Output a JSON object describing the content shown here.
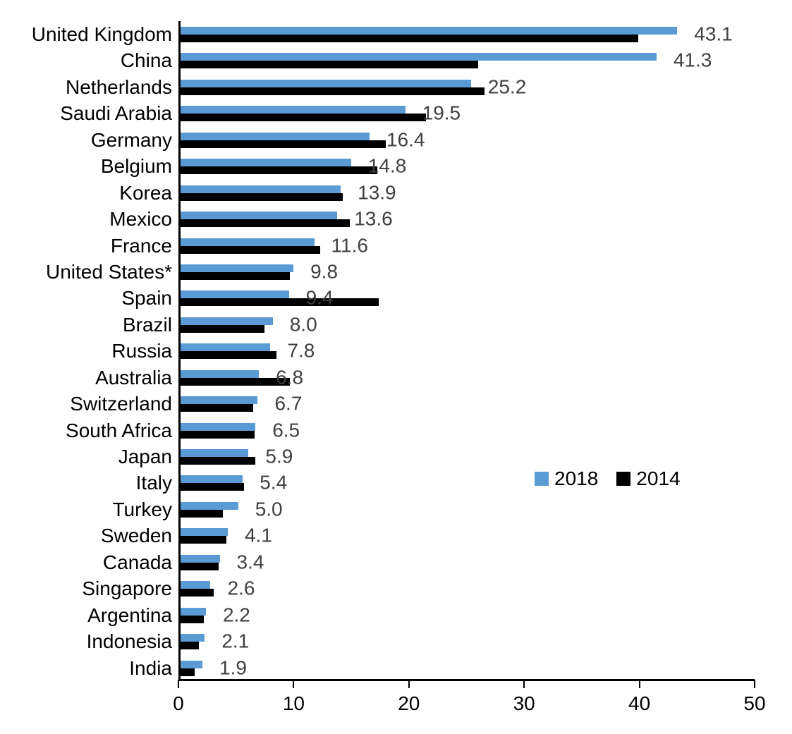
{
  "chart_data": {
    "type": "bar",
    "orientation": "horizontal",
    "title": "",
    "xlabel": "",
    "ylabel": "",
    "xlim": [
      0,
      50
    ],
    "xticks": [
      "0",
      "10",
      "20",
      "30",
      "40",
      "50"
    ],
    "grid": false,
    "legend_position": "middle-right",
    "categories": [
      "United Kingdom",
      "China",
      "Netherlands",
      "Saudi Arabia",
      "Germany",
      "Belgium",
      "Korea",
      "Mexico",
      "France",
      "United States*",
      "Spain",
      "Brazil",
      "Russia",
      "Australia",
      "Switzerland",
      "South Africa",
      "Japan",
      "Italy",
      "Turkey",
      "Sweden",
      "Canada",
      "Singapore",
      "Argentina",
      "Indonesia",
      "India"
    ],
    "series": [
      {
        "name": "2018",
        "color": "#5B9BD5",
        "values": [
          43.1,
          41.3,
          25.2,
          19.5,
          16.4,
          14.8,
          13.9,
          13.6,
          11.6,
          9.8,
          9.4,
          8.0,
          7.8,
          6.8,
          6.7,
          6.5,
          5.9,
          5.4,
          5.0,
          4.1,
          3.4,
          2.6,
          2.2,
          2.1,
          1.9
        ]
      },
      {
        "name": "2014",
        "color": "#000000",
        "values": [
          39.7,
          25.8,
          26.4,
          21.3,
          17.8,
          17.1,
          14.1,
          14.7,
          12.1,
          9.5,
          17.2,
          7.3,
          8.3,
          9.5,
          6.3,
          6.4,
          6.5,
          5.5,
          3.7,
          4.0,
          3.3,
          2.9,
          2.0,
          1.6,
          1.2
        ]
      }
    ],
    "data_labels": [
      "43.1",
      "41.3",
      "25.2",
      "19.5",
      "16.4",
      "14.8",
      "13.9",
      "13.6",
      "11.6",
      "9.8",
      "9.4",
      "8.0",
      "7.8",
      "6.8",
      "6.7",
      "6.5",
      "5.9",
      "5.4",
      "5.0",
      "4.1",
      "3.4",
      "2.6",
      "2.2",
      "2.1",
      "1.9"
    ],
    "data_label_color": "#404040",
    "axis_color": "#000000"
  }
}
